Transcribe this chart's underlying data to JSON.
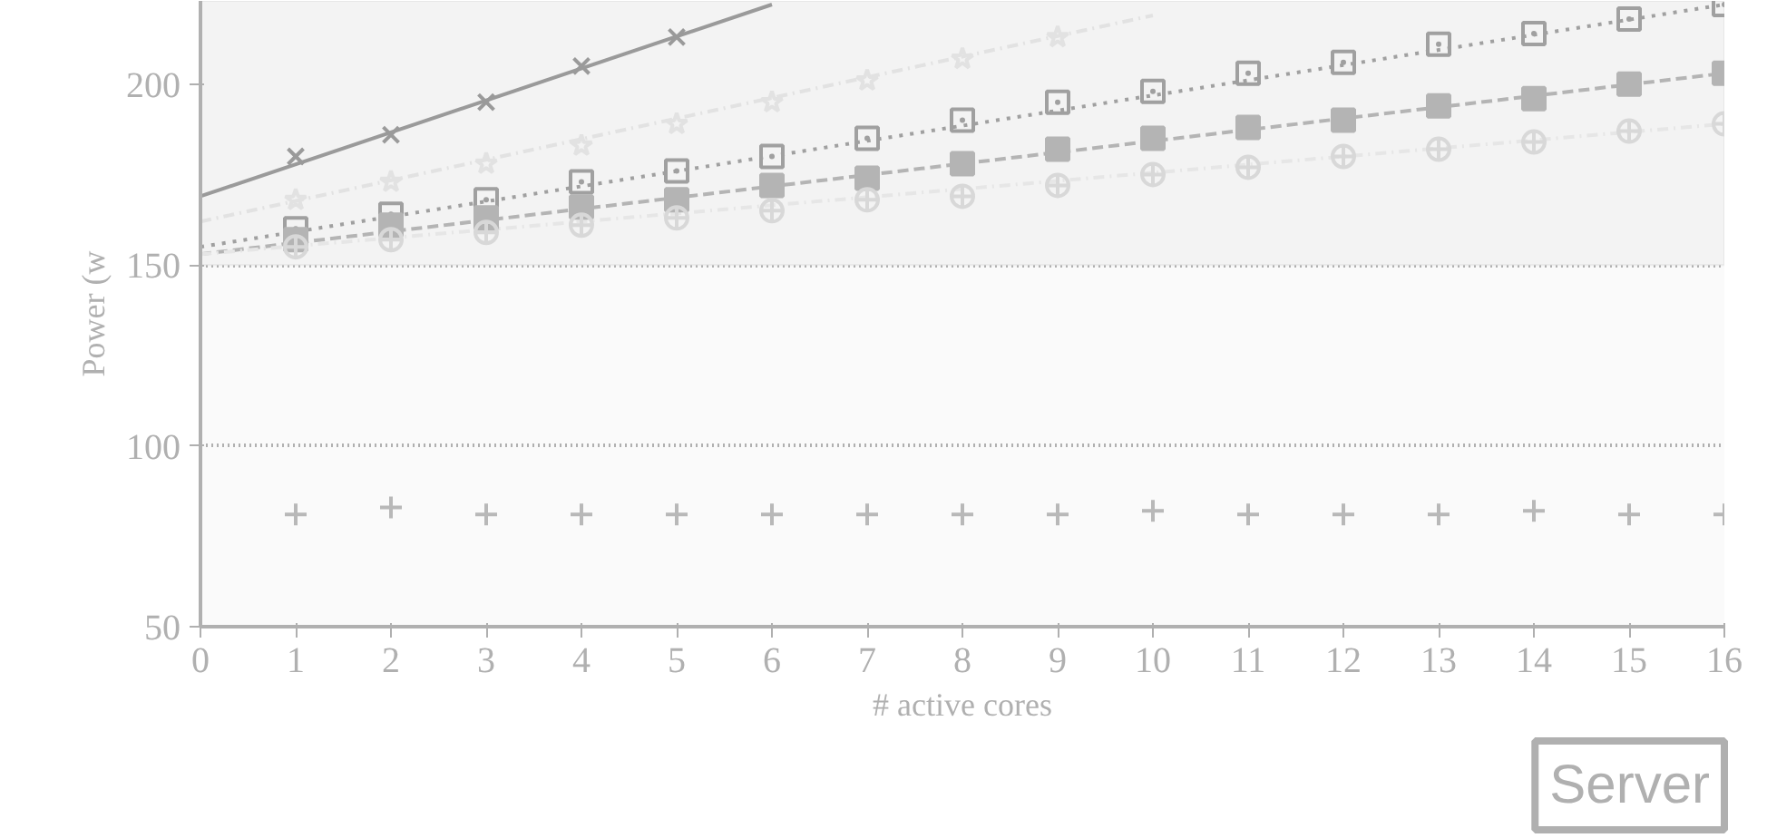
{
  "chart_data": {
    "type": "line",
    "ylabel": "Power (w",
    "xlabel": "# active cores",
    "annotations": [
      "Server"
    ],
    "xlim": [
      0,
      16
    ],
    "xticks": [
      0,
      1,
      2,
      3,
      4,
      5,
      6,
      7,
      8,
      9,
      10,
      11,
      12,
      13,
      14,
      15,
      16
    ],
    "ylim": [
      50,
      223
    ],
    "yticks": [
      50,
      100,
      150,
      200
    ],
    "grid": "y",
    "bands": [
      {
        "axis": "y",
        "from": 150,
        "to": 223,
        "color": "#f3f3f3"
      }
    ],
    "series": [
      {
        "color": "#9a9a9a",
        "line_style": "solid",
        "x": [
          0,
          6
        ],
        "values": [
          169,
          222
        ]
      },
      {
        "type": "scatter",
        "color": "#9a9a9a",
        "marker": "x",
        "x": [
          1,
          2,
          3,
          4,
          5
        ],
        "values": [
          180,
          186,
          195,
          205,
          213
        ]
      },
      {
        "color": "#e2e2e2",
        "line_style": "dashdot",
        "x": [
          0,
          10
        ],
        "values": [
          162,
          219
        ]
      },
      {
        "type": "scatter",
        "color": "#e2e2e2",
        "marker": "star",
        "x": [
          1,
          2,
          3,
          4,
          5,
          6,
          7,
          8,
          9
        ],
        "values": [
          168,
          173,
          178,
          183,
          189,
          195,
          201,
          207,
          213
        ]
      },
      {
        "color": "#a0a0a0",
        "line_style": "dotted",
        "x": [
          0,
          16
        ],
        "values": [
          155,
          222
        ]
      },
      {
        "type": "scatter",
        "color": "#a0a0a0",
        "marker": "square_dot",
        "x": [
          1,
          2,
          3,
          4,
          5,
          6,
          7,
          8,
          9,
          10,
          11,
          12,
          13,
          14,
          15,
          16
        ],
        "values": [
          160,
          164,
          168,
          173,
          176,
          180,
          185,
          190,
          195,
          198,
          203,
          206,
          211,
          214,
          218,
          222
        ]
      },
      {
        "color": "#b4b4b4",
        "line_style": "dashed",
        "x": [
          0,
          16
        ],
        "values": [
          153,
          203
        ]
      },
      {
        "type": "scatter",
        "color": "#b4b4b4",
        "marker": "square",
        "x": [
          1,
          2,
          3,
          4,
          5,
          6,
          7,
          8,
          9,
          10,
          11,
          12,
          13,
          14,
          15,
          16
        ],
        "values": [
          157,
          161,
          163,
          166,
          168,
          172,
          174,
          178,
          182,
          185,
          188,
          190,
          194,
          196,
          200,
          203
        ]
      },
      {
        "color": "#e6e6e6",
        "line_style": "dashdot",
        "x": [
          0,
          16
        ],
        "values": [
          153,
          189
        ]
      },
      {
        "type": "scatter",
        "color": "#d8d8d8",
        "marker": "circle_cross",
        "x": [
          1,
          2,
          3,
          4,
          5,
          6,
          7,
          8,
          9,
          10,
          11,
          12,
          13,
          14,
          15,
          16
        ],
        "values": [
          155,
          157,
          159,
          161,
          163,
          165,
          168,
          169,
          172,
          175,
          177,
          180,
          182,
          184,
          187,
          189
        ]
      },
      {
        "type": "scatter",
        "color": "#b8b8b8",
        "marker": "cross",
        "x": [
          1,
          2,
          3,
          4,
          5,
          6,
          7,
          8,
          9,
          10,
          11,
          12,
          13,
          14,
          15,
          16
        ],
        "values": [
          81,
          83,
          81,
          81,
          81,
          81,
          81,
          81,
          81,
          82,
          81,
          81,
          81,
          82,
          81,
          81
        ]
      }
    ]
  }
}
